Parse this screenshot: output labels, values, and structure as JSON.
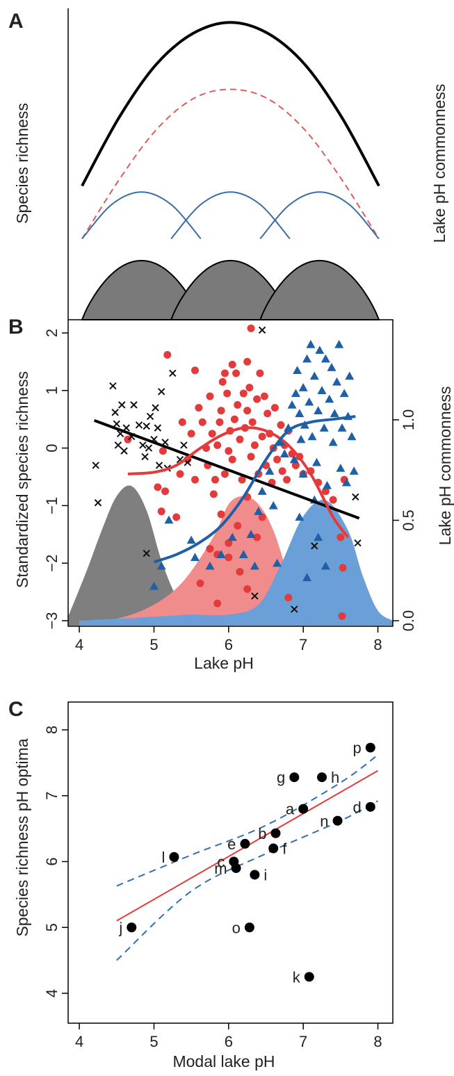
{
  "panels": {
    "A": {
      "letter": "A",
      "ylabel": "Species richness",
      "ylabel_right": "Lake pH commonness"
    },
    "B": {
      "letter": "B",
      "xlabel": "Lake pH",
      "ylabel": "Standardized species richness",
      "ylabel_right": "Lake pH commonness"
    },
    "C": {
      "letter": "C",
      "xlabel": "Modal lake pH",
      "ylabel": "Species richness pH optima"
    }
  },
  "chart_data": [
    {
      "panel": "A",
      "type": "line",
      "description": "conceptual",
      "x_range": [
        4,
        8
      ],
      "series": [
        {
          "role": "total richness",
          "style": "solid",
          "color": "#000000",
          "x": [
            4.0,
            4.5,
            5.0,
            5.5,
            6.0,
            6.5,
            7.0,
            7.5,
            8.0
          ],
          "y": [
            0.43,
            0.65,
            0.82,
            0.92,
            0.955,
            0.92,
            0.82,
            0.65,
            0.43
          ]
        },
        {
          "role": "summed richness",
          "style": "dashed",
          "color": "#e05a5a",
          "x": [
            4.0,
            4.5,
            5.0,
            5.5,
            6.0,
            6.5,
            7.0,
            7.5,
            8.0
          ],
          "y": [
            0.26,
            0.45,
            0.61,
            0.71,
            0.74,
            0.71,
            0.61,
            0.45,
            0.26
          ]
        },
        {
          "role": "group 1",
          "style": "solid",
          "color": "#3a6ea5",
          "x": [
            4.0,
            4.4,
            4.8,
            5.2,
            5.6
          ],
          "y": [
            0.26,
            0.37,
            0.41,
            0.37,
            0.26
          ]
        },
        {
          "role": "group 2",
          "style": "solid",
          "color": "#3a6ea5",
          "x": [
            5.2,
            5.6,
            6.0,
            6.4,
            6.8
          ],
          "y": [
            0.26,
            0.37,
            0.41,
            0.37,
            0.26
          ]
        },
        {
          "role": "group 3",
          "style": "solid",
          "color": "#3a6ea5",
          "x": [
            6.4,
            6.8,
            7.2,
            7.6,
            8.0
          ],
          "y": [
            0.26,
            0.37,
            0.41,
            0.37,
            0.26
          ]
        }
      ],
      "areas": [
        {
          "role": "pH commonness 1",
          "color": "#7a7a7a",
          "peak_x": 4.8,
          "range": [
            4.0,
            5.6
          ],
          "peak": 0.19
        },
        {
          "role": "pH commonness 2",
          "color": "#7a7a7a",
          "peak_x": 6.0,
          "range": [
            5.2,
            6.8
          ],
          "peak": 0.19
        },
        {
          "role": "pH commonness 3",
          "color": "#7a7a7a",
          "peak_x": 7.2,
          "range": [
            6.4,
            8.0
          ],
          "peak": 0.19
        }
      ]
    },
    {
      "panel": "B",
      "type": "scatter",
      "xlim": [
        3.85,
        8.2
      ],
      "ylim": [
        -3,
        2.1
      ],
      "y2lim": [
        0,
        1.3
      ],
      "xticks": [
        "4",
        "5",
        "6",
        "7",
        "8"
      ],
      "yticks": [
        "−3",
        "−2",
        "−1",
        "0",
        "1",
        "2"
      ],
      "y2ticks": [
        "0.0",
        "0.5",
        "1.0"
      ],
      "colors": {
        "black": "#111111",
        "red": "#e33b3b",
        "blue": "#1f5fa6",
        "gray_area": "#7f7f7f",
        "red_area": "#f08c8c",
        "blue_area": "#6a9fd8"
      },
      "points_x_group": [
        [
          4.22,
          -0.3
        ],
        [
          4.25,
          -0.95
        ],
        [
          4.45,
          1.08
        ],
        [
          4.48,
          0.62
        ],
        [
          4.5,
          0.42
        ],
        [
          4.52,
          0.05
        ],
        [
          4.55,
          0.25
        ],
        [
          4.57,
          0.75
        ],
        [
          4.6,
          -0.05
        ],
        [
          4.63,
          0.35
        ],
        [
          4.7,
          0.2
        ],
        [
          4.73,
          0.75
        ],
        [
          4.8,
          0.4
        ],
        [
          4.85,
          0.05
        ],
        [
          4.88,
          -0.15
        ],
        [
          4.9,
          0.38
        ],
        [
          4.93,
          0.0
        ],
        [
          4.95,
          0.55
        ],
        [
          5.0,
          0.15
        ],
        [
          5.02,
          0.7
        ],
        [
          5.05,
          0.35
        ],
        [
          5.07,
          -0.3
        ],
        [
          5.1,
          0.98
        ],
        [
          5.15,
          0.1
        ],
        [
          5.18,
          -0.35
        ],
        [
          5.25,
          1.3
        ],
        [
          5.35,
          -0.2
        ],
        [
          5.4,
          0.05
        ],
        [
          5.45,
          -0.25
        ],
        [
          4.9,
          -1.83
        ],
        [
          6.35,
          -2.57
        ],
        [
          6.45,
          2.05
        ],
        [
          6.88,
          -2.8
        ],
        [
          7.15,
          -1.7
        ],
        [
          7.73,
          -1.65
        ],
        [
          7.7,
          -0.85
        ]
      ],
      "points_red_group": [
        [
          4.65,
          0.15
        ],
        [
          5.05,
          -0.68
        ],
        [
          5.1,
          -1.1
        ],
        [
          5.12,
          -0.05
        ],
        [
          5.15,
          -0.75
        ],
        [
          5.18,
          1.62
        ],
        [
          5.3,
          -1.2
        ],
        [
          5.35,
          -0.45
        ],
        [
          5.38,
          0.45
        ],
        [
          5.45,
          -0.2
        ],
        [
          5.5,
          0.25
        ],
        [
          5.55,
          -0.55
        ],
        [
          5.55,
          1.35
        ],
        [
          5.6,
          0.7
        ],
        [
          5.65,
          0.45
        ],
        [
          5.7,
          0.0
        ],
        [
          5.72,
          -0.3
        ],
        [
          5.75,
          0.9
        ],
        [
          5.78,
          0.25
        ],
        [
          5.8,
          -0.8
        ],
        [
          5.82,
          -0.55
        ],
        [
          5.85,
          0.05
        ],
        [
          5.88,
          0.45
        ],
        [
          5.9,
          -1.15
        ],
        [
          5.9,
          0.65
        ],
        [
          5.92,
          1.15
        ],
        [
          5.95,
          -0.45
        ],
        [
          5.98,
          0.95
        ],
        [
          6.0,
          -0.05
        ],
        [
          6.02,
          0.3
        ],
        [
          6.05,
          -0.2
        ],
        [
          6.08,
          0.5
        ],
        [
          6.1,
          1.3
        ],
        [
          6.12,
          0.75
        ],
        [
          6.12,
          -1.35
        ],
        [
          6.15,
          0.15
        ],
        [
          6.18,
          -0.55
        ],
        [
          6.2,
          0.95
        ],
        [
          6.22,
          0.35
        ],
        [
          6.25,
          -0.85
        ],
        [
          6.25,
          0.65
        ],
        [
          6.28,
          1.05
        ],
        [
          6.3,
          -0.15
        ],
        [
          6.32,
          0.45
        ],
        [
          6.35,
          0.05
        ],
        [
          6.38,
          0.85
        ],
        [
          6.4,
          -0.45
        ],
        [
          6.42,
          1.3
        ],
        [
          6.45,
          0.2
        ],
        [
          6.48,
          0.9
        ],
        [
          6.5,
          -0.3
        ],
        [
          6.52,
          0.6
        ],
        [
          6.55,
          0.25
        ],
        [
          6.58,
          -0.6
        ],
        [
          6.6,
          0.0
        ],
        [
          6.62,
          0.7
        ],
        [
          6.65,
          -0.2
        ],
        [
          6.7,
          0.4
        ],
        [
          6.72,
          -0.4
        ],
        [
          6.75,
          0.05
        ],
        [
          6.78,
          -0.55
        ],
        [
          6.8,
          0.3
        ],
        [
          6.85,
          -0.1
        ],
        [
          6.9,
          -0.3
        ],
        [
          6.95,
          -0.15
        ],
        [
          7.0,
          -0.45
        ],
        [
          7.1,
          -0.4
        ],
        [
          7.2,
          -0.6
        ],
        [
          7.3,
          -0.75
        ],
        [
          7.4,
          -0.9
        ],
        [
          5.62,
          -2.35
        ],
        [
          5.75,
          -1.75
        ],
        [
          5.85,
          -1.85
        ],
        [
          6.0,
          -1.65
        ],
        [
          6.0,
          -1.9
        ],
        [
          6.15,
          -2.15
        ],
        [
          6.25,
          -2.45
        ],
        [
          6.38,
          -1.55
        ],
        [
          6.45,
          -1.2
        ],
        [
          5.85,
          -2.7
        ],
        [
          6.8,
          -2.6
        ],
        [
          7.5,
          -1.55
        ],
        [
          7.53,
          -2.08
        ],
        [
          7.52,
          -2.92
        ],
        [
          7.55,
          -0.55
        ],
        [
          6.3,
          2.08
        ],
        [
          6.25,
          1.5
        ],
        [
          6.05,
          1.45
        ],
        [
          5.95,
          1.3
        ]
      ],
      "points_tri_group": [
        [
          5.0,
          -2.4
        ],
        [
          5.1,
          -2.05
        ],
        [
          5.2,
          -1.25
        ],
        [
          5.5,
          -1.6
        ],
        [
          5.55,
          -1.9
        ],
        [
          5.75,
          -2.05
        ],
        [
          5.9,
          -1.85
        ],
        [
          6.05,
          -1.55
        ],
        [
          6.2,
          -1.85
        ],
        [
          6.3,
          -1.5
        ],
        [
          6.35,
          -2.05
        ],
        [
          6.4,
          -1.1
        ],
        [
          6.45,
          -0.75
        ],
        [
          6.55,
          -0.4
        ],
        [
          6.6,
          -1.0
        ],
        [
          6.65,
          -2.0
        ],
        [
          6.7,
          0.1
        ],
        [
          6.75,
          -0.1
        ],
        [
          6.8,
          0.35
        ],
        [
          6.85,
          0.75
        ],
        [
          6.88,
          -0.2
        ],
        [
          6.9,
          0.95
        ],
        [
          6.92,
          1.35
        ],
        [
          6.95,
          0.6
        ],
        [
          6.97,
          0.15
        ],
        [
          7.0,
          -0.45
        ],
        [
          7.0,
          1.05
        ],
        [
          7.02,
          0.4
        ],
        [
          7.05,
          1.55
        ],
        [
          7.08,
          0.8
        ],
        [
          7.1,
          1.8
        ],
        [
          7.12,
          0.2
        ],
        [
          7.15,
          1.25
        ],
        [
          7.18,
          -0.25
        ],
        [
          7.2,
          0.65
        ],
        [
          7.22,
          1.7
        ],
        [
          7.25,
          1.0
        ],
        [
          7.28,
          0.35
        ],
        [
          7.3,
          1.55
        ],
        [
          7.32,
          -0.65
        ],
        [
          7.35,
          0.85
        ],
        [
          7.38,
          1.4
        ],
        [
          7.4,
          0.1
        ],
        [
          7.42,
          0.6
        ],
        [
          7.45,
          1.15
        ],
        [
          7.48,
          1.8
        ],
        [
          7.5,
          -0.35
        ],
        [
          7.52,
          0.35
        ],
        [
          7.55,
          0.95
        ],
        [
          7.58,
          -0.6
        ],
        [
          7.6,
          0.55
        ],
        [
          7.62,
          1.25
        ],
        [
          7.65,
          0.2
        ],
        [
          7.68,
          -0.4
        ],
        [
          7.2,
          -1.55
        ],
        [
          7.05,
          -2.25
        ],
        [
          7.3,
          -2.05
        ],
        [
          6.95,
          -1.2
        ],
        [
          7.15,
          -0.9
        ]
      ],
      "lines": [
        {
          "role": "black fit",
          "color": "#000000",
          "x": [
            4.2,
            7.75
          ],
          "y": [
            0.48,
            -1.22
          ]
        },
        {
          "role": "red fit",
          "color": "#e33b3b",
          "x": [
            4.65,
            5.0,
            5.3,
            5.6,
            5.9,
            6.2,
            6.5,
            6.8,
            7.1,
            7.4,
            7.6
          ],
          "y": [
            -0.45,
            -0.42,
            -0.3,
            -0.02,
            0.22,
            0.35,
            0.3,
            0.05,
            -0.45,
            -1.2,
            -1.55
          ]
        },
        {
          "role": "blue fit",
          "color": "#1f5fa6",
          "x": [
            5.0,
            5.3,
            5.6,
            5.9,
            6.2,
            6.5,
            6.8,
            7.1,
            7.4,
            7.7
          ],
          "y": [
            -1.98,
            -1.85,
            -1.65,
            -1.35,
            -0.85,
            -0.2,
            0.3,
            0.45,
            0.5,
            0.55
          ]
        }
      ],
      "areas": [
        {
          "role": "commonness gray",
          "color": "#7f7f7f",
          "x": [
            3.85,
            4.1,
            4.3,
            4.5,
            4.7,
            4.9,
            5.1,
            5.3,
            5.5,
            5.7
          ],
          "y2": [
            0.02,
            0.25,
            0.45,
            0.62,
            0.67,
            0.55,
            0.3,
            0.12,
            0.03,
            0.0
          ]
        },
        {
          "role": "commonness red",
          "color": "#f08c8c",
          "x": [
            4.0,
            4.5,
            5.0,
            5.4,
            5.8,
            6.0,
            6.2,
            6.4,
            6.6,
            6.8,
            7.0
          ],
          "y2": [
            0.0,
            0.01,
            0.08,
            0.2,
            0.42,
            0.58,
            0.62,
            0.58,
            0.45,
            0.22,
            0.0
          ]
        },
        {
          "role": "commonness blue",
          "color": "#6a9fd8",
          "x": [
            4.0,
            5.0,
            5.5,
            6.0,
            6.4,
            6.7,
            7.0,
            7.3,
            7.6,
            7.8,
            8.0,
            8.2
          ],
          "y2": [
            0.0,
            0.02,
            0.03,
            0.03,
            0.08,
            0.28,
            0.52,
            0.6,
            0.45,
            0.22,
            0.05,
            0.0
          ]
        }
      ]
    },
    {
      "panel": "C",
      "type": "scatter",
      "xlim": [
        3.85,
        8.2
      ],
      "ylim": [
        3.85,
        8.15
      ],
      "xticks": [
        "4",
        "5",
        "6",
        "7",
        "8"
      ],
      "yticks": [
        "4",
        "5",
        "6",
        "7",
        "8"
      ],
      "points": [
        {
          "label": "a",
          "x": 7.0,
          "y": 6.8,
          "label_side": "left"
        },
        {
          "label": "b",
          "x": 6.63,
          "y": 6.43,
          "label_side": "left"
        },
        {
          "label": "c",
          "x": 6.07,
          "y": 6.0,
          "label_side": "left"
        },
        {
          "label": "d",
          "x": 7.9,
          "y": 6.83,
          "label_side": "left"
        },
        {
          "label": "e",
          "x": 6.22,
          "y": 6.27,
          "label_side": "left"
        },
        {
          "label": "f",
          "x": 6.6,
          "y": 6.2,
          "label_side": "right"
        },
        {
          "label": "g",
          "x": 6.88,
          "y": 7.28,
          "label_side": "left"
        },
        {
          "label": "h",
          "x": 7.25,
          "y": 7.28,
          "label_side": "right"
        },
        {
          "label": "i",
          "x": 6.35,
          "y": 5.8,
          "label_side": "right"
        },
        {
          "label": "j",
          "x": 4.7,
          "y": 5.0,
          "label_side": "left"
        },
        {
          "label": "k",
          "x": 7.08,
          "y": 4.25,
          "label_side": "left"
        },
        {
          "label": "l",
          "x": 5.27,
          "y": 6.07,
          "label_side": "left"
        },
        {
          "label": "m",
          "x": 6.1,
          "y": 5.9,
          "label_side": "left"
        },
        {
          "label": "n",
          "x": 7.46,
          "y": 6.62,
          "label_side": "left"
        },
        {
          "label": "o",
          "x": 6.28,
          "y": 5.0,
          "label_side": "left"
        },
        {
          "label": "p",
          "x": 7.9,
          "y": 7.73,
          "label_side": "left"
        }
      ],
      "lines": [
        {
          "role": "fit",
          "color": "#e33b3b",
          "style": "solid",
          "x": [
            4.5,
            8.0
          ],
          "y": [
            5.1,
            7.38
          ]
        },
        {
          "role": "ci upper",
          "color": "#2f6fb3",
          "style": "dashed",
          "x": [
            4.5,
            5.5,
            6.5,
            7.5,
            8.0
          ],
          "y": [
            5.63,
            6.1,
            6.55,
            7.2,
            7.62
          ]
        },
        {
          "role": "ci lower",
          "color": "#2f6fb3",
          "style": "dashed",
          "x": [
            4.5,
            5.5,
            6.5,
            7.5,
            8.0
          ],
          "y": [
            4.5,
            5.55,
            6.12,
            6.62,
            6.92
          ]
        }
      ]
    }
  ]
}
